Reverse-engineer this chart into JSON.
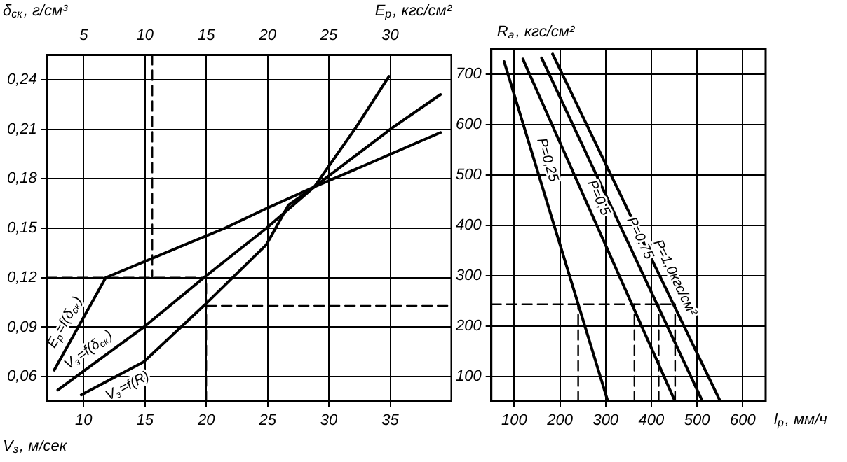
{
  "chart_data": [
    {
      "type": "line",
      "ylabel": "δ$_{ск}$, г/см³",
      "xlabel": "V$_{з}$, м/сек",
      "x2label": "E$_{р}$, кгс/см²",
      "xlim": [
        7,
        40
      ],
      "ylim": [
        0.045,
        0.255
      ],
      "x2lim": [
        2,
        35
      ],
      "xticks": [
        10,
        15,
        20,
        25,
        30,
        35
      ],
      "x2ticks": [
        5,
        10,
        15,
        20,
        25,
        30
      ],
      "yticks": [
        {
          "value": 0.06,
          "label": "0,06"
        },
        {
          "value": 0.09,
          "label": "0,09"
        },
        {
          "value": 0.12,
          "label": "0,12"
        },
        {
          "value": 0.15,
          "label": "0,15"
        },
        {
          "value": 0.18,
          "label": "0,18"
        },
        {
          "value": 0.21,
          "label": "0,21"
        },
        {
          "value": 0.24,
          "label": "0,24"
        }
      ],
      "grid": true,
      "marker": "none",
      "series": [
        {
          "name": "E$_{р}$=f(δ$_{ск}$)",
          "color": "#000000",
          "line_style": "solid",
          "x": [
            7.6,
            11.8,
            21.5,
            24.9,
            28.8,
            33.2,
            39.1
          ],
          "values": [
            0.064,
            0.12,
            0.15,
            0.162,
            0.175,
            0.189,
            0.208
          ]
        },
        {
          "name": "V$_{з}$=f(δ$_{ск}$)",
          "color": "#000000",
          "line_style": "solid",
          "x": [
            7.9,
            14.9,
            19.8,
            24.9,
            28.8,
            35.2,
            39.1
          ],
          "values": [
            0.052,
            0.09,
            0.12,
            0.15,
            0.175,
            0.211,
            0.231
          ]
        },
        {
          "name": "V$_{з}$=f(R)",
          "color": "#000000",
          "line_style": "solid",
          "x": [
            9.8,
            14.9,
            19.8,
            24.9,
            26.7,
            28.8,
            32.2,
            34.9
          ],
          "values": [
            0.049,
            0.069,
            0.103,
            0.14,
            0.164,
            0.175,
            0.211,
            0.242
          ]
        },
        {
          "color": "#000000",
          "line_style": "dashed",
          "x": [
            15.6,
            15.6
          ],
          "values": [
            0.255,
            0.12
          ]
        },
        {
          "color": "#000000",
          "line_style": "dashed",
          "x": [
            7,
            20
          ],
          "values": [
            0.12,
            0.12
          ]
        },
        {
          "color": "#000000",
          "line_style": "dashed",
          "x": [
            20,
            20
          ],
          "values": [
            0.045,
            0.12
          ]
        },
        {
          "color": "#000000",
          "line_style": "dashed",
          "x": [
            20,
            40
          ],
          "values": [
            0.103,
            0.103
          ]
        }
      ]
    },
    {
      "type": "line",
      "ylabel": "R$_{а}$, кгс/см²",
      "xlabel": "l$_{р}$, мм/ч",
      "xlim": [
        50,
        650
      ],
      "ylim": [
        50,
        750
      ],
      "xticks": [
        100,
        200,
        300,
        400,
        500,
        600
      ],
      "yticks": [
        100,
        200,
        300,
        400,
        500,
        600,
        700
      ],
      "grid": true,
      "marker": "none",
      "series": [
        {
          "name": "P=0,25",
          "color": "#000000",
          "line_style": "solid",
          "x": [
            78,
            305
          ],
          "values": [
            725,
            50
          ]
        },
        {
          "name": "P=0,5",
          "color": "#000000",
          "line_style": "solid",
          "x": [
            119,
            452
          ],
          "values": [
            730,
            50
          ]
        },
        {
          "name": "P=0,75",
          "color": "#000000",
          "line_style": "solid",
          "x": [
            160,
            512
          ],
          "values": [
            732,
            50
          ]
        },
        {
          "name": "P=1,0кгс/см²",
          "color": "#000000",
          "line_style": "solid",
          "x": [
            184,
            551
          ],
          "values": [
            740,
            50
          ]
        },
        {
          "color": "#000000",
          "line_style": "dashed",
          "x": [
            50,
            452
          ],
          "values": [
            243,
            243
          ]
        },
        {
          "color": "#000000",
          "line_style": "dashed",
          "x": [
            240,
            240
          ],
          "values": [
            50,
            243
          ]
        },
        {
          "color": "#000000",
          "line_style": "dashed",
          "x": [
            363,
            363
          ],
          "values": [
            50,
            243
          ]
        },
        {
          "color": "#000000",
          "line_style": "dashed",
          "x": [
            416,
            416
          ],
          "values": [
            50,
            243
          ]
        },
        {
          "color": "#000000",
          "line_style": "dashed",
          "x": [
            452,
            452
          ],
          "values": [
            50,
            243
          ]
        }
      ]
    }
  ]
}
